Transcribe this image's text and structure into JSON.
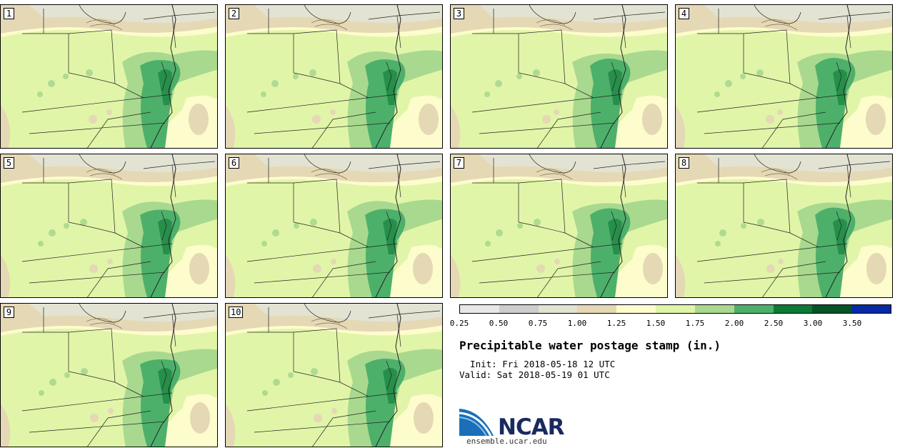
{
  "panels": [
    {
      "label": "1"
    },
    {
      "label": "2"
    },
    {
      "label": "3"
    },
    {
      "label": "4"
    },
    {
      "label": "5"
    },
    {
      "label": "6"
    },
    {
      "label": "7"
    },
    {
      "label": "8"
    },
    {
      "label": "9"
    },
    {
      "label": "10"
    }
  ],
  "colors": {
    "bins": [
      "#e8e8e8",
      "#cdcdcd",
      "#e3e3d3",
      "#e5d8b5",
      "#fdfccc",
      "#e1f5a8",
      "#a9d98e",
      "#4db06a",
      "#0d7a35",
      "#055328",
      "#0729a6"
    ]
  },
  "legend_ticks": [
    "0.25",
    "0.50",
    "0.75",
    "1.00",
    "1.25",
    "1.50",
    "1.75",
    "2.00",
    "2.50",
    "3.00",
    "3.50"
  ],
  "title": "Precipitable water postage stamp (in.)",
  "init": "  Init: Fri 2018-05-18 12 UTC",
  "valid": "Valid: Sat 2018-05-19 01 UTC",
  "logo": {
    "text": "NCAR",
    "url": "ensemble.ucar.edu"
  }
}
